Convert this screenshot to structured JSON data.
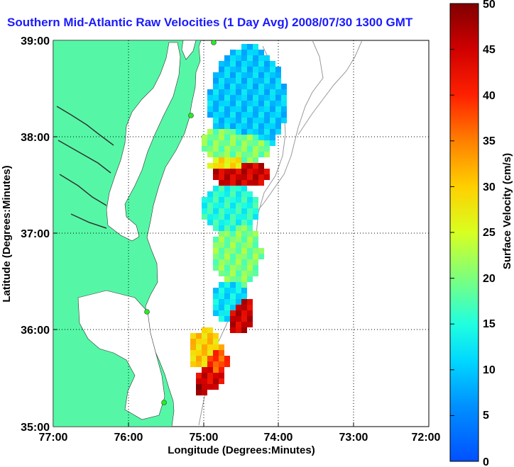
{
  "title": "Southern Mid-Atlantic Raw Velocities (1 Day Avg) 2008/07/30 1300 GMT",
  "x_axis": {
    "label": "Longitude (Degrees:Minutes)",
    "ticks": [
      "77:00",
      "76:00",
      "75:00",
      "74:00",
      "73:00",
      "72:00"
    ]
  },
  "y_axis": {
    "label": "Latitude (Degrees:Minutes)",
    "ticks": [
      "39:00",
      "38:00",
      "37:00",
      "36:00",
      "35:00"
    ]
  },
  "colorbar": {
    "label": "Surface Velocity (cm/s)",
    "ticks": [
      "50",
      "45",
      "40",
      "35",
      "30",
      "25",
      "20",
      "15",
      "10",
      "5",
      "0"
    ],
    "min": 0,
    "max": 50
  },
  "colors": {
    "land": "#55f7a6",
    "title": "#1a1aff",
    "station": "#22ee22"
  },
  "chart_data": {
    "type": "heatmap",
    "x_range_degrees": [
      -77,
      -72
    ],
    "y_range_degrees": [
      35,
      39
    ],
    "grid": "dotted",
    "value_units": "cm/s",
    "stations": [
      "38:59N 74:50W",
      "38:14N 75:07W",
      "36:12N 75:45W",
      "35:16N 75:33W"
    ]
  }
}
